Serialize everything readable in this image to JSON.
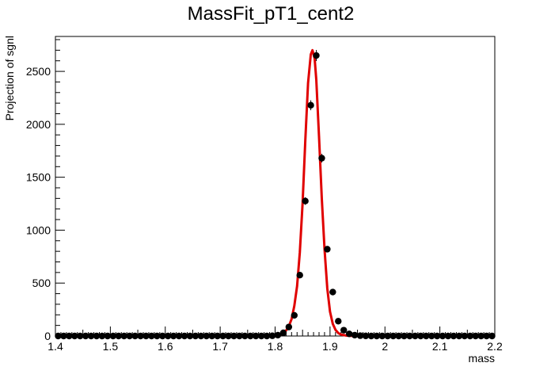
{
  "chart_data": {
    "type": "scatter",
    "title": "MassFit_pT1_cent2",
    "xlabel": "mass",
    "ylabel": "Projection of sgnl",
    "xlim": [
      1.4,
      2.2
    ],
    "ylim": [
      0,
      2830
    ],
    "x_ticks": [
      "1.4",
      "1.5",
      "1.6",
      "1.7",
      "1.8",
      "1.9",
      "2",
      "2.1",
      "2.2"
    ],
    "y_ticks": [
      "0",
      "500",
      "1000",
      "1500",
      "2000",
      "2500"
    ],
    "grid": false,
    "legend": "none",
    "colors": {
      "points": "#000000",
      "fit": "#e00000"
    },
    "series": [
      {
        "type": "points",
        "x": [
          1.405,
          1.415,
          1.425,
          1.435,
          1.445,
          1.455,
          1.465,
          1.475,
          1.485,
          1.495,
          1.505,
          1.515,
          1.525,
          1.535,
          1.545,
          1.555,
          1.565,
          1.575,
          1.585,
          1.595,
          1.605,
          1.615,
          1.625,
          1.635,
          1.645,
          1.655,
          1.665,
          1.675,
          1.685,
          1.695,
          1.705,
          1.715,
          1.725,
          1.735,
          1.745,
          1.755,
          1.765,
          1.775,
          1.785,
          1.795,
          1.805,
          1.815,
          1.825,
          1.835,
          1.845,
          1.855,
          1.865,
          1.875,
          1.885,
          1.895,
          1.905,
          1.915,
          1.925,
          1.935,
          1.945,
          1.955,
          1.965,
          1.975,
          1.985,
          1.995,
          2.005,
          2.015,
          2.025,
          2.035,
          2.045,
          2.055,
          2.065,
          2.075,
          2.085,
          2.095,
          2.105,
          2.115,
          2.125,
          2.135,
          2.145,
          2.155,
          2.165,
          2.175,
          2.185,
          2.195
        ],
        "y": [
          0,
          0,
          0,
          0,
          0,
          0,
          0,
          0,
          0,
          0,
          0,
          0,
          0,
          0,
          0,
          0,
          0,
          0,
          0,
          0,
          0,
          0,
          0,
          0,
          0,
          0,
          0,
          0,
          0,
          0,
          0,
          0,
          0,
          0,
          0,
          0,
          0,
          0,
          0,
          2,
          8,
          30,
          85,
          195,
          575,
          1275,
          2180,
          2650,
          1680,
          820,
          415,
          140,
          55,
          20,
          8,
          3,
          1,
          0,
          0,
          0,
          0,
          0,
          0,
          0,
          0,
          0,
          0,
          0,
          0,
          0,
          0,
          0,
          0,
          0,
          0,
          0,
          0,
          0,
          0,
          0
        ],
        "yerr": [
          0,
          0,
          0,
          0,
          0,
          0,
          0,
          0,
          0,
          0,
          0,
          0,
          0,
          0,
          0,
          0,
          0,
          0,
          0,
          0,
          0,
          0,
          0,
          0,
          0,
          0,
          0,
          0,
          0,
          0,
          0,
          0,
          0,
          0,
          0,
          0,
          0,
          0,
          0,
          1,
          3,
          6,
          9,
          14,
          24,
          36,
          47,
          52,
          41,
          29,
          20,
          12,
          7,
          4,
          3,
          2,
          1,
          0,
          0,
          0,
          0,
          0,
          0,
          0,
          0,
          0,
          0,
          0,
          0,
          0,
          0,
          0,
          0,
          0,
          0,
          0,
          0,
          0,
          0,
          0
        ]
      },
      {
        "type": "fit",
        "x": [
          1.78,
          1.79,
          1.8,
          1.81,
          1.815,
          1.82,
          1.825,
          1.83,
          1.835,
          1.84,
          1.845,
          1.85,
          1.855,
          1.86,
          1.865,
          1.868,
          1.872,
          1.875,
          1.88,
          1.885,
          1.89,
          1.895,
          1.9,
          1.905,
          1.91,
          1.915,
          1.92,
          1.93,
          1.94,
          1.95,
          1.96,
          1.97
        ],
        "y": [
          0,
          1,
          4,
          14,
          28,
          52,
          92,
          160,
          285,
          470,
          790,
          1250,
          1850,
          2390,
          2660,
          2700,
          2620,
          2420,
          1880,
          1300,
          820,
          450,
          230,
          115,
          58,
          28,
          14,
          4,
          1,
          0,
          0,
          0
        ]
      }
    ]
  }
}
